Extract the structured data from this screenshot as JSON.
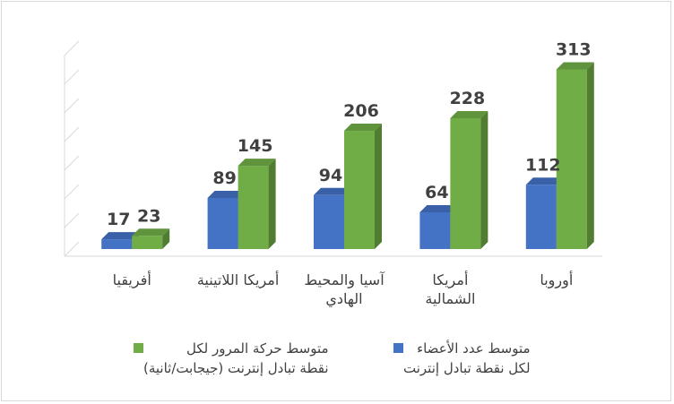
{
  "chart_data": {
    "type": "bar",
    "categories": [
      "أفريقيا",
      "أمريكا اللاتينية",
      "آسيا والمحيط الهادي",
      "أمريكا الشمالية",
      "أوروبا"
    ],
    "series": [
      {
        "name": "متوسط عدد الأعضاء لكل نقطة تبادل إنترنت",
        "values": [
          17,
          89,
          94,
          64,
          112
        ],
        "color": "#4472c4"
      },
      {
        "name": "متوسط حركة المرور لكل نقطة تبادل إنترنت (جيجابت/ثانية)",
        "values": [
          23,
          145,
          206,
          228,
          313
        ],
        "color": "#70ad47"
      }
    ],
    "category_labels": [
      "أفريقيا",
      "أمريكا اللاتينية",
      "آسيا والمحيط\nالهادي",
      "أمريكا\nالشمالية",
      "أوروبا"
    ],
    "legend_labels": [
      "متوسط عدد الأعضاء\nلكل نقطة تبادل إنترنت",
      "متوسط حركة المرور لكل\nنقطة تبادل إنترنت (جيجابت/ثانية)"
    ],
    "ylim": [
      0,
      350
    ],
    "grid": true,
    "legend_position": "bottom",
    "three_d": true
  }
}
